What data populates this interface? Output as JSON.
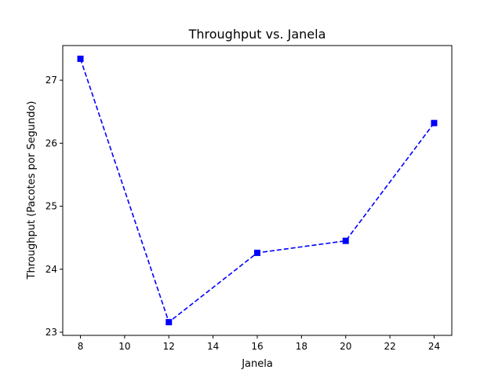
{
  "chart_data": {
    "type": "line",
    "title": "Throughput vs. Janela",
    "xlabel": "Janela",
    "ylabel": "Throughput (Pacotes por Segundo)",
    "xlim": [
      7.2,
      24.8
    ],
    "ylim": [
      22.95,
      27.55
    ],
    "xticks": [
      8,
      10,
      12,
      14,
      16,
      18,
      20,
      22,
      24
    ],
    "yticks": [
      23,
      24,
      25,
      26,
      27
    ],
    "grid": false,
    "series": [
      {
        "x": [
          8,
          12,
          16,
          20,
          24
        ],
        "values": [
          27.34,
          23.16,
          24.26,
          24.45,
          26.32
        ],
        "color": "#0000ff",
        "line_style": "dashed",
        "marker": "square"
      }
    ]
  }
}
